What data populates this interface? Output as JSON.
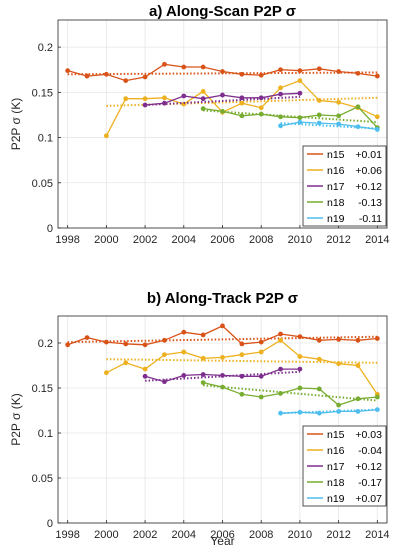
{
  "chart_data": [
    {
      "type": "line",
      "title": "a) Along-Scan P2P σ",
      "xlabel": "",
      "ylabel": "P2P σ (K)",
      "xlim": [
        1997.5,
        2014.5
      ],
      "ylim": [
        0,
        0.23
      ],
      "xticks": [
        1998,
        2000,
        2002,
        2004,
        2006,
        2008,
        2010,
        2012,
        2014
      ],
      "yticks": [
        0,
        0.05,
        0.1,
        0.15,
        0.2
      ],
      "ytick_labels": [
        "0",
        "0.05",
        "0.1",
        "0.15",
        "0.2"
      ],
      "grid": true,
      "legend_position": "lower-right",
      "series": [
        {
          "name": "n15",
          "trend_label": "+0.01",
          "color": "#d95319",
          "x": [
            1998,
            1999,
            2000,
            2001,
            2002,
            2003,
            2004,
            2005,
            2006,
            2007,
            2008,
            2009,
            2010,
            2011,
            2012,
            2013,
            2014
          ],
          "y": [
            0.174,
            0.168,
            0.17,
            0.163,
            0.167,
            0.181,
            0.178,
            0.178,
            0.173,
            0.17,
            0.169,
            0.175,
            0.174,
            0.176,
            0.173,
            0.171,
            0.168
          ],
          "trend": [
            0.17,
            0.172
          ]
        },
        {
          "name": "n16",
          "trend_label": "+0.06",
          "color": "#edb120",
          "x": [
            2000,
            2001,
            2002,
            2003,
            2004,
            2005,
            2006,
            2007,
            2008,
            2009,
            2010,
            2011,
            2012,
            2013,
            2014
          ],
          "y": [
            0.102,
            0.143,
            0.143,
            0.144,
            0.137,
            0.151,
            0.128,
            0.138,
            0.133,
            0.155,
            0.163,
            0.141,
            0.139,
            0.133,
            0.123
          ],
          "trend": [
            0.135,
            0.144
          ]
        },
        {
          "name": "n17",
          "trend_label": "+0.12",
          "color": "#7e2f8e",
          "x": [
            2002,
            2003,
            2004,
            2005,
            2006,
            2007,
            2008,
            2009,
            2010
          ],
          "y": [
            0.136,
            0.138,
            0.146,
            0.143,
            0.147,
            0.144,
            0.144,
            0.148,
            0.149
          ],
          "trend": [
            0.136,
            0.145
          ]
        },
        {
          "name": "n18",
          "trend_label": "-0.13",
          "color": "#77ac30",
          "x": [
            2005,
            2006,
            2007,
            2008,
            2009,
            2010,
            2011,
            2012,
            2013,
            2014
          ],
          "y": [
            0.132,
            0.129,
            0.124,
            0.126,
            0.123,
            0.122,
            0.125,
            0.124,
            0.134,
            0.111
          ],
          "trend": [
            0.13,
            0.117
          ]
        },
        {
          "name": "n19",
          "trend_label": "-0.11",
          "color": "#4dbeee",
          "x": [
            2009,
            2010,
            2011,
            2012,
            2013,
            2014
          ],
          "y": [
            0.113,
            0.117,
            0.116,
            0.115,
            0.112,
            0.109
          ],
          "trend": [
            0.116,
            0.11
          ]
        }
      ]
    },
    {
      "type": "line",
      "title": "b) Along-Track P2P σ",
      "xlabel": "Year",
      "ylabel": "P2P σ (K)",
      "xlim": [
        1997.5,
        2014.5
      ],
      "ylim": [
        0,
        0.23
      ],
      "xticks": [
        1998,
        2000,
        2002,
        2004,
        2006,
        2008,
        2010,
        2012,
        2014
      ],
      "yticks": [
        0,
        0.05,
        0.1,
        0.15,
        0.2
      ],
      "ytick_labels": [
        "0",
        "0.05",
        "0.1",
        "0.15",
        "0.2"
      ],
      "grid": true,
      "legend_position": "lower-right",
      "series": [
        {
          "name": "n15",
          "trend_label": "+0.03",
          "color": "#d95319",
          "x": [
            1998,
            1999,
            2000,
            2001,
            2002,
            2003,
            2004,
            2005,
            2006,
            2007,
            2008,
            2009,
            2010,
            2011,
            2012,
            2013,
            2014
          ],
          "y": [
            0.198,
            0.206,
            0.201,
            0.199,
            0.198,
            0.203,
            0.212,
            0.209,
            0.219,
            0.199,
            0.201,
            0.21,
            0.207,
            0.203,
            0.204,
            0.203,
            0.205
          ],
          "trend": [
            0.201,
            0.207
          ]
        },
        {
          "name": "n16",
          "trend_label": "-0.04",
          "color": "#edb120",
          "x": [
            2000,
            2001,
            2002,
            2003,
            2004,
            2005,
            2006,
            2007,
            2008,
            2009,
            2010,
            2011,
            2012,
            2013,
            2014
          ],
          "y": [
            0.167,
            0.178,
            0.171,
            0.187,
            0.19,
            0.183,
            0.184,
            0.187,
            0.19,
            0.203,
            0.185,
            0.182,
            0.177,
            0.175,
            0.143
          ],
          "trend": [
            0.182,
            0.178
          ]
        },
        {
          "name": "n17",
          "trend_label": "+0.12",
          "color": "#7e2f8e",
          "x": [
            2002,
            2003,
            2004,
            2005,
            2006,
            2007,
            2008,
            2009,
            2010
          ],
          "y": [
            0.163,
            0.157,
            0.164,
            0.165,
            0.164,
            0.163,
            0.163,
            0.171,
            0.171
          ],
          "trend": [
            0.158,
            0.168
          ]
        },
        {
          "name": "n18",
          "trend_label": "-0.17",
          "color": "#77ac30",
          "x": [
            2005,
            2006,
            2007,
            2008,
            2009,
            2010,
            2011,
            2012,
            2013,
            2014
          ],
          "y": [
            0.156,
            0.151,
            0.143,
            0.14,
            0.144,
            0.15,
            0.149,
            0.131,
            0.138,
            0.14
          ],
          "trend": [
            0.153,
            0.136
          ]
        },
        {
          "name": "n19",
          "trend_label": "+0.07",
          "color": "#4dbeee",
          "x": [
            2009,
            2010,
            2011,
            2012,
            2013,
            2014
          ],
          "y": [
            0.122,
            0.123,
            0.122,
            0.124,
            0.124,
            0.126
          ],
          "trend": [
            0.122,
            0.126
          ]
        }
      ]
    }
  ]
}
